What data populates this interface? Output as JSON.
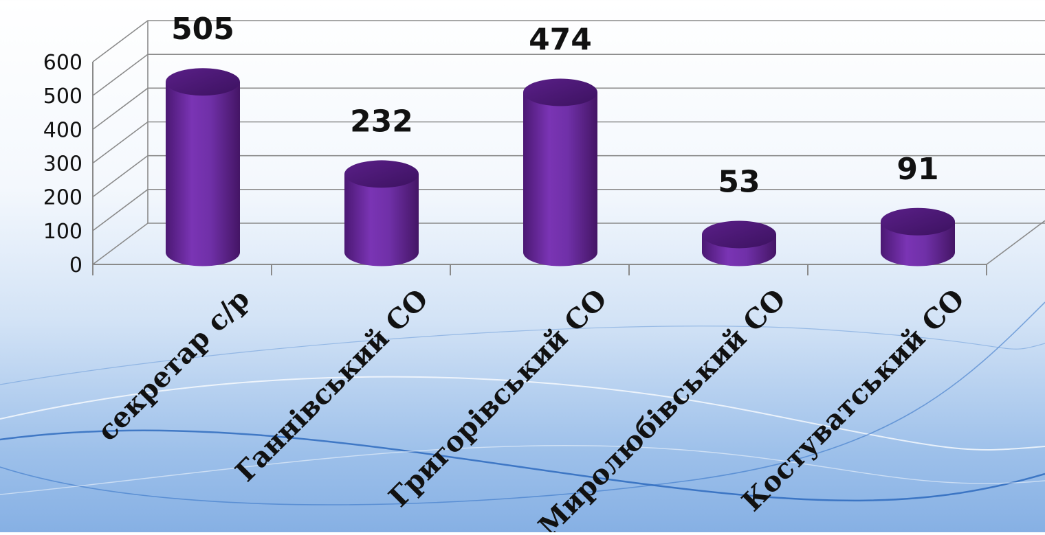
{
  "chart_data": {
    "type": "bar",
    "style": "3d-cylinder",
    "categories": [
      "секретар с/р",
      "Ганнівський СО",
      "Григорівський СО",
      "Миролюбівський СО",
      "Костуватський СО"
    ],
    "values": [
      505,
      232,
      474,
      53,
      91
    ],
    "data_labels": [
      "505",
      "232",
      "474",
      "53",
      "91"
    ],
    "ylim": [
      0,
      600
    ],
    "yticks": [
      "0",
      "100",
      "200",
      "300",
      "400",
      "500",
      "600"
    ],
    "grid": true,
    "legend": "none",
    "bar_color": "#6a2aa0",
    "title": "",
    "xlabel": "",
    "ylabel": ""
  }
}
